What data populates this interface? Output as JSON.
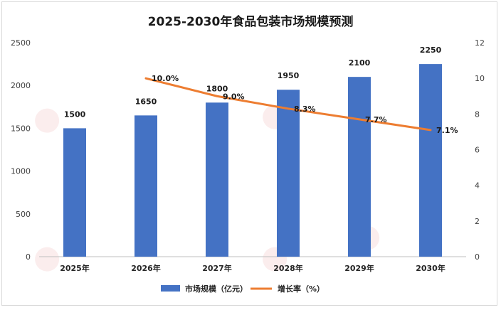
{
  "chart_data": {
    "type": "bar",
    "title": "2025-2030年食品包装市场规模预测",
    "categories": [
      "2025年",
      "2026年",
      "2027年",
      "2028年",
      "2029年",
      "2030年"
    ],
    "series": [
      {
        "name": "市场规模（亿元）",
        "type": "bar",
        "axis": "left",
        "color": "#4472C4",
        "values": [
          1500,
          1650,
          1800,
          1950,
          2100,
          2250
        ],
        "labels": [
          "1500",
          "1650",
          "1800",
          "1950",
          "2100",
          "2250"
        ]
      },
      {
        "name": "增长率（%）",
        "type": "line",
        "axis": "right",
        "color": "#ED7D31",
        "values": [
          null,
          10.0,
          9.0,
          8.3,
          7.7,
          7.1
        ],
        "labels": [
          "",
          "10.0%",
          "9.0%",
          "8.3%",
          "7.7%",
          "7.1%"
        ]
      }
    ],
    "ylim_left": [
      0,
      2500
    ],
    "yticks_left": [
      "0",
      "500",
      "1000",
      "1500",
      "2000",
      "2500"
    ],
    "ylim_right": [
      0,
      12
    ],
    "yticks_right": [
      "0",
      "2",
      "4",
      "6",
      "8",
      "10",
      "12"
    ],
    "grid": false,
    "legend_position": "bottom"
  }
}
